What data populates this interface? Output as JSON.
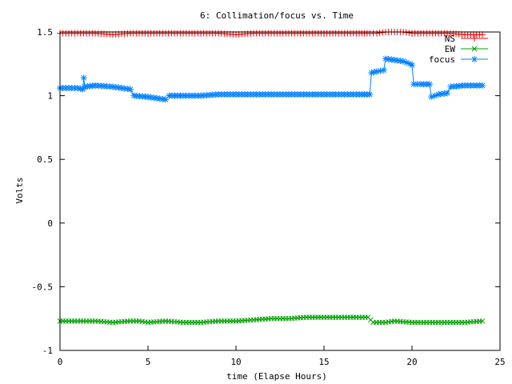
{
  "chart_data": {
    "type": "line",
    "title": "6: Collimation/focus vs. Time",
    "xlabel": "time (Elapse Hours)",
    "ylabel": "Volts",
    "xlim": [
      0,
      25
    ],
    "ylim": [
      -1,
      1.5
    ],
    "xticks": [
      0,
      5,
      10,
      15,
      20,
      25
    ],
    "xtick_labels": [
      "0",
      "5",
      "10",
      "15",
      "20",
      "25"
    ],
    "yticks": [
      -1,
      -0.5,
      0,
      0.5,
      1,
      1.5
    ],
    "ytick_labels": [
      "-1",
      "-0.5",
      "0",
      "0.5",
      "1",
      "1.5"
    ],
    "grid": false,
    "legend": "top-right",
    "series": [
      {
        "name": "NS",
        "color": "#ff0000",
        "marker": "plus",
        "points": [
          [
            0,
            1.49
          ],
          [
            1,
            1.49
          ],
          [
            2,
            1.49
          ],
          [
            3,
            1.48
          ],
          [
            4,
            1.49
          ],
          [
            5,
            1.49
          ],
          [
            6,
            1.49
          ],
          [
            7,
            1.49
          ],
          [
            8,
            1.49
          ],
          [
            9,
            1.49
          ],
          [
            10,
            1.48
          ],
          [
            11,
            1.49
          ],
          [
            12,
            1.49
          ],
          [
            13,
            1.49
          ],
          [
            14,
            1.49
          ],
          [
            15,
            1.49
          ],
          [
            16,
            1.49
          ],
          [
            17,
            1.49
          ],
          [
            17.6,
            1.49
          ],
          [
            18,
            1.49
          ],
          [
            18.5,
            1.5
          ],
          [
            19,
            1.5
          ],
          [
            19.5,
            1.5
          ],
          [
            20,
            1.49
          ],
          [
            20.5,
            1.49
          ],
          [
            21,
            1.49
          ],
          [
            21.5,
            1.49
          ],
          [
            22,
            1.49
          ],
          [
            23,
            1.48
          ],
          [
            24,
            1.48
          ]
        ]
      },
      {
        "name": "EW",
        "color": "#00a000",
        "marker": "cross",
        "points": [
          [
            0,
            -0.77
          ],
          [
            1,
            -0.77
          ],
          [
            2,
            -0.77
          ],
          [
            3,
            -0.78
          ],
          [
            4,
            -0.77
          ],
          [
            4.5,
            -0.77
          ],
          [
            5,
            -0.78
          ],
          [
            6,
            -0.77
          ],
          [
            7,
            -0.78
          ],
          [
            8,
            -0.78
          ],
          [
            9,
            -0.77
          ],
          [
            10,
            -0.77
          ],
          [
            11,
            -0.76
          ],
          [
            12,
            -0.75
          ],
          [
            13,
            -0.75
          ],
          [
            14,
            -0.74
          ],
          [
            15,
            -0.74
          ],
          [
            16,
            -0.74
          ],
          [
            17,
            -0.74
          ],
          [
            17.5,
            -0.74
          ],
          [
            17.8,
            -0.78
          ],
          [
            18.5,
            -0.78
          ],
          [
            19,
            -0.77
          ],
          [
            20,
            -0.78
          ],
          [
            21,
            -0.78
          ],
          [
            22,
            -0.78
          ],
          [
            23,
            -0.78
          ],
          [
            24,
            -0.77
          ]
        ]
      },
      {
        "name": "focus",
        "color": "#0080ff",
        "marker": "star",
        "points": [
          [
            0,
            1.06
          ],
          [
            1,
            1.06
          ],
          [
            1.3,
            1.05
          ],
          [
            1.35,
            1.14
          ],
          [
            1.4,
            1.07
          ],
          [
            2,
            1.08
          ],
          [
            3,
            1.07
          ],
          [
            3.5,
            1.06
          ],
          [
            4,
            1.05
          ],
          [
            4.2,
            1.0
          ],
          [
            5,
            0.99
          ],
          [
            5.5,
            0.98
          ],
          [
            6,
            0.97
          ],
          [
            6.2,
            1.0
          ],
          [
            7,
            1.0
          ],
          [
            8,
            1.0
          ],
          [
            9,
            1.01
          ],
          [
            10,
            1.01
          ],
          [
            11,
            1.01
          ],
          [
            12,
            1.01
          ],
          [
            13,
            1.01
          ],
          [
            14,
            1.01
          ],
          [
            15,
            1.01
          ],
          [
            16,
            1.01
          ],
          [
            17,
            1.01
          ],
          [
            17.6,
            1.01
          ],
          [
            17.7,
            1.18
          ],
          [
            18,
            1.19
          ],
          [
            18.4,
            1.2
          ],
          [
            18.5,
            1.29
          ],
          [
            19,
            1.28
          ],
          [
            19.5,
            1.27
          ],
          [
            19.9,
            1.25
          ],
          [
            20,
            1.24
          ],
          [
            20.1,
            1.09
          ],
          [
            20.5,
            1.09
          ],
          [
            21,
            1.09
          ],
          [
            21.1,
            0.99
          ],
          [
            21.5,
            1.01
          ],
          [
            22,
            1.02
          ],
          [
            22.2,
            1.07
          ],
          [
            23,
            1.08
          ],
          [
            24,
            1.08
          ]
        ]
      }
    ]
  }
}
